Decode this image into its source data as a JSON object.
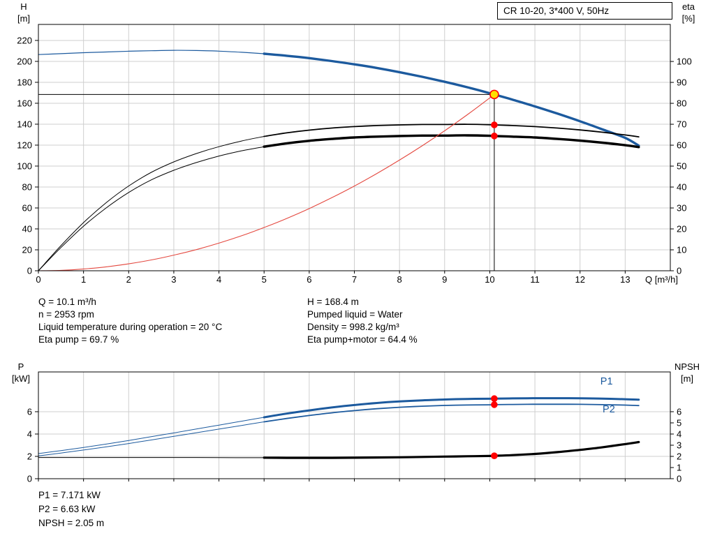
{
  "title_box": {
    "label": "CR 10-20, 3*400 V, 50Hz"
  },
  "operating_info": {
    "left": [
      "Q = 10.1 m³/h",
      "n = 2953 rpm",
      "Liquid temperature during operation = 20 °C",
      "Eta pump = 69.7 %"
    ],
    "right": [
      "H = 168.4 m",
      "Pumped liquid = Water",
      "Density = 998.2 kg/m³",
      "Eta pump+motor = 64.4 %"
    ]
  },
  "bottom_info": [
    "P1 = 7.171 kW",
    "P2 = 6.63 kW",
    "NPSH = 2.05 m"
  ],
  "colors": {
    "curve_blue": "#1c5a9e",
    "curve_black": "#000000",
    "curve_red": "#e4483f",
    "dot_red": "#ff0000",
    "op_yellow": "#ffdf00",
    "grid": "#cfcfcf",
    "axis": "#000000"
  },
  "chart_data": [
    {
      "type": "line",
      "title": "CR 10-20, 3*400 V, 50Hz",
      "x": {
        "label": "Q [m³/h]",
        "min": 0,
        "max": 14,
        "ticks": [
          0,
          1,
          2,
          3,
          4,
          5,
          6,
          7,
          8,
          9,
          10,
          11,
          12,
          13
        ],
        "show_labels": true
      },
      "y_left": {
        "label_lines": [
          "H",
          "[m]"
        ],
        "min": 0,
        "max": 235.3,
        "ticks": [
          0,
          20,
          40,
          60,
          80,
          100,
          120,
          140,
          160,
          180,
          200,
          220
        ]
      },
      "y_right": {
        "label_lines": [
          "eta",
          "[%]"
        ],
        "min": 0,
        "max": 117.7,
        "ticks": [
          0,
          10,
          20,
          30,
          40,
          50,
          60,
          70,
          80,
          90,
          100
        ]
      },
      "crosshair": {
        "q": 10.1,
        "axis": "left",
        "value": 168.4
      },
      "series": [
        {
          "sname": "h-curve",
          "label": "H",
          "axis": "left",
          "color": "#1c5a9e",
          "segments": [
            {
              "q0": 0,
              "q1": 5,
              "width": 1.2
            },
            {
              "q0": 5,
              "q1": 13.3,
              "width": 3.4
            }
          ],
          "points": [
            [
              0,
              206.5
            ],
            [
              0.5,
              207.4
            ],
            [
              1,
              208.3
            ],
            [
              1.5,
              209.0
            ],
            [
              2,
              209.7
            ],
            [
              2.5,
              210.2
            ],
            [
              3,
              210.6
            ],
            [
              3.5,
              210.4
            ],
            [
              4,
              209.8
            ],
            [
              4.5,
              208.7
            ],
            [
              5,
              207.3
            ],
            [
              5.5,
              205.4
            ],
            [
              6,
              203.1
            ],
            [
              6.5,
              200.3
            ],
            [
              7,
              197.2
            ],
            [
              7.5,
              193.7
            ],
            [
              8,
              189.7
            ],
            [
              8.5,
              185.3
            ],
            [
              9,
              180.5
            ],
            [
              9.5,
              175.3
            ],
            [
              10,
              169.6
            ],
            [
              10.1,
              168.4
            ],
            [
              10.5,
              163.5
            ],
            [
              11,
              157.0
            ],
            [
              11.5,
              150.1
            ],
            [
              12,
              142.8
            ],
            [
              12.5,
              135.0
            ],
            [
              13,
              126.9
            ],
            [
              13.3,
              119.5
            ]
          ]
        },
        {
          "sname": "eta-pump-curve",
          "label": "Eta pump",
          "axis": "right",
          "color": "#000000",
          "segments": [
            {
              "q0": 0,
              "q1": 5,
              "width": 1
            },
            {
              "q0": 5,
              "q1": 13.3,
              "width": 1.8
            }
          ],
          "points": [
            [
              0,
              0
            ],
            [
              0.5,
              12.0
            ],
            [
              1,
              23.0
            ],
            [
              1.5,
              32.5
            ],
            [
              2,
              40.5
            ],
            [
              2.5,
              47.0
            ],
            [
              3,
              52.0
            ],
            [
              3.5,
              56.0
            ],
            [
              4,
              59.3
            ],
            [
              4.5,
              62.0
            ],
            [
              5,
              64.2
            ],
            [
              5.5,
              65.9
            ],
            [
              6,
              67.2
            ],
            [
              6.5,
              68.2
            ],
            [
              7,
              68.9
            ],
            [
              7.5,
              69.4
            ],
            [
              8,
              69.7
            ],
            [
              8.5,
              69.9
            ],
            [
              9,
              69.9
            ],
            [
              9.5,
              70.0
            ],
            [
              10,
              69.8
            ],
            [
              10.1,
              69.7
            ],
            [
              10.5,
              69.4
            ],
            [
              11,
              68.9
            ],
            [
              11.5,
              68.2
            ],
            [
              12,
              67.3
            ],
            [
              12.5,
              66.2
            ],
            [
              13,
              64.9
            ],
            [
              13.3,
              64.0
            ]
          ]
        },
        {
          "sname": "eta-pump-motor-curve",
          "label": "Eta pump+motor",
          "axis": "right",
          "color": "#000000",
          "segments": [
            {
              "q0": 0,
              "q1": 5,
              "width": 1
            },
            {
              "q0": 5,
              "q1": 13.3,
              "width": 3.4
            }
          ],
          "points": [
            [
              0,
              0
            ],
            [
              0.5,
              11.1
            ],
            [
              1,
              21.3
            ],
            [
              1.5,
              30.0
            ],
            [
              2,
              37.4
            ],
            [
              2.5,
              43.4
            ],
            [
              3,
              48.0
            ],
            [
              3.5,
              51.7
            ],
            [
              4,
              54.8
            ],
            [
              4.5,
              57.3
            ],
            [
              5,
              59.3
            ],
            [
              5.5,
              60.9
            ],
            [
              6,
              62.1
            ],
            [
              6.5,
              63.0
            ],
            [
              7,
              63.7
            ],
            [
              7.5,
              64.1
            ],
            [
              8,
              64.4
            ],
            [
              8.5,
              64.6
            ],
            [
              9,
              64.6
            ],
            [
              9.5,
              64.7
            ],
            [
              10,
              64.5
            ],
            [
              10.1,
              64.4
            ],
            [
              10.5,
              64.1
            ],
            [
              11,
              63.7
            ],
            [
              11.5,
              63.0
            ],
            [
              12,
              62.2
            ],
            [
              12.5,
              61.2
            ],
            [
              13,
              60.0
            ],
            [
              13.3,
              59.1
            ]
          ]
        },
        {
          "sname": "system-curve",
          "label": "Duty curve",
          "axis": "left",
          "color": "#e4483f",
          "segments": [
            {
              "q0": 0,
              "q1": 10.1,
              "width": 1.1
            }
          ],
          "points": [
            [
              0,
              0
            ],
            [
              0.5,
              0.4
            ],
            [
              1,
              1.7
            ],
            [
              1.5,
              3.7
            ],
            [
              2,
              6.6
            ],
            [
              2.5,
              10.3
            ],
            [
              3,
              14.9
            ],
            [
              3.5,
              20.2
            ],
            [
              4,
              26.4
            ],
            [
              4.5,
              33.4
            ],
            [
              5,
              41.3
            ],
            [
              5.5,
              49.9
            ],
            [
              6,
              59.4
            ],
            [
              6.5,
              69.8
            ],
            [
              7,
              80.9
            ],
            [
              7.5,
              92.9
            ],
            [
              8,
              105.7
            ],
            [
              8.5,
              119.3
            ],
            [
              9,
              133.7
            ],
            [
              9.5,
              149.0
            ],
            [
              10,
              165.1
            ],
            [
              10.1,
              168.4
            ]
          ]
        }
      ],
      "markers": [
        {
          "name": "operating-point",
          "q": 10.1,
          "value": 168.4,
          "axis": "left",
          "style": "op"
        },
        {
          "name": "eta-pump-point",
          "q": 10.1,
          "value": 69.7,
          "axis": "right",
          "style": "dot"
        },
        {
          "name": "eta-pump-motor-point",
          "q": 10.1,
          "value": 64.4,
          "axis": "right",
          "style": "dot"
        }
      ],
      "annotations": []
    },
    {
      "type": "line",
      "title": "",
      "x": {
        "label": "",
        "min": 0,
        "max": 14,
        "ticks": [
          0,
          1,
          2,
          3,
          4,
          5,
          6,
          7,
          8,
          9,
          10,
          11,
          12,
          13
        ],
        "show_labels": false
      },
      "y_left": {
        "label_lines": [
          "P",
          "[kW]"
        ],
        "min": 0,
        "max": 9.56,
        "ticks": [
          0,
          2,
          4,
          6
        ]
      },
      "y_right": {
        "label_lines": [
          "NPSH",
          "[m]"
        ],
        "min": 0,
        "max": 9.56,
        "ticks": [
          0,
          1,
          2,
          3,
          4,
          5,
          6
        ]
      },
      "series": [
        {
          "sname": "p1-curve",
          "label": "P1",
          "axis": "left",
          "color": "#1c5a9e",
          "segments": [
            {
              "q0": 0,
              "q1": 5,
              "width": 1
            },
            {
              "q0": 5,
              "q1": 13.3,
              "width": 3
            }
          ],
          "points": [
            [
              0,
              2.25
            ],
            [
              0.5,
              2.52
            ],
            [
              1,
              2.8
            ],
            [
              1.5,
              3.1
            ],
            [
              2,
              3.42
            ],
            [
              2.5,
              3.76
            ],
            [
              3,
              4.1
            ],
            [
              3.5,
              4.45
            ],
            [
              4,
              4.8
            ],
            [
              4.5,
              5.15
            ],
            [
              5,
              5.5
            ],
            [
              5.5,
              5.83
            ],
            [
              6,
              6.12
            ],
            [
              6.5,
              6.38
            ],
            [
              7,
              6.6
            ],
            [
              7.5,
              6.78
            ],
            [
              8,
              6.92
            ],
            [
              8.5,
              7.02
            ],
            [
              9,
              7.09
            ],
            [
              9.5,
              7.14
            ],
            [
              10,
              7.16
            ],
            [
              10.1,
              7.171
            ],
            [
              10.5,
              7.19
            ],
            [
              11,
              7.21
            ],
            [
              11.5,
              7.21
            ],
            [
              12,
              7.2
            ],
            [
              12.5,
              7.17
            ],
            [
              13,
              7.12
            ],
            [
              13.3,
              7.08
            ]
          ]
        },
        {
          "sname": "p2-curve",
          "label": "P2",
          "axis": "left",
          "color": "#1c5a9e",
          "segments": [
            {
              "q0": 0,
              "q1": 5,
              "width": 1
            },
            {
              "q0": 5,
              "q1": 13.3,
              "width": 1.8
            }
          ],
          "points": [
            [
              0,
              2.05
            ],
            [
              0.5,
              2.3
            ],
            [
              1,
              2.57
            ],
            [
              1.5,
              2.85
            ],
            [
              2,
              3.15
            ],
            [
              2.5,
              3.47
            ],
            [
              3,
              3.79
            ],
            [
              3.5,
              4.12
            ],
            [
              4,
              4.44
            ],
            [
              4.5,
              4.77
            ],
            [
              5,
              5.09
            ],
            [
              5.5,
              5.39
            ],
            [
              6,
              5.66
            ],
            [
              6.5,
              5.9
            ],
            [
              7,
              6.1
            ],
            [
              7.5,
              6.27
            ],
            [
              8,
              6.4
            ],
            [
              8.5,
              6.49
            ],
            [
              9,
              6.56
            ],
            [
              9.5,
              6.6
            ],
            [
              10,
              6.62
            ],
            [
              10.1,
              6.63
            ],
            [
              10.5,
              6.65
            ],
            [
              11,
              6.67
            ],
            [
              11.5,
              6.67
            ],
            [
              12,
              6.66
            ],
            [
              12.5,
              6.63
            ],
            [
              13,
              6.59
            ],
            [
              13.3,
              6.55
            ]
          ]
        },
        {
          "sname": "npsh-curve",
          "label": "NPSH",
          "axis": "right",
          "color": "#000000",
          "segments": [
            {
              "q0": 0,
              "q1": 5,
              "width": 1
            },
            {
              "q0": 5,
              "q1": 13.3,
              "width": 3.2
            }
          ],
          "points": [
            [
              0,
              1.9
            ],
            [
              1,
              1.9
            ],
            [
              2,
              1.9
            ],
            [
              3,
              1.9
            ],
            [
              4,
              1.89
            ],
            [
              5,
              1.88
            ],
            [
              5.5,
              1.87
            ],
            [
              6,
              1.87
            ],
            [
              6.5,
              1.87
            ],
            [
              7,
              1.88
            ],
            [
              7.5,
              1.9
            ],
            [
              8,
              1.92
            ],
            [
              8.5,
              1.95
            ],
            [
              9,
              1.98
            ],
            [
              9.5,
              2.01
            ],
            [
              10,
              2.04
            ],
            [
              10.1,
              2.05
            ],
            [
              10.5,
              2.11
            ],
            [
              11,
              2.22
            ],
            [
              11.5,
              2.38
            ],
            [
              12,
              2.58
            ],
            [
              12.5,
              2.82
            ],
            [
              13,
              3.1
            ],
            [
              13.3,
              3.28
            ]
          ]
        }
      ],
      "markers": [
        {
          "name": "p1-point",
          "q": 10.1,
          "value": 7.171,
          "axis": "left",
          "style": "dot"
        },
        {
          "name": "p2-point",
          "q": 10.1,
          "value": 6.63,
          "axis": "left",
          "style": "dot"
        },
        {
          "name": "npsh-point",
          "q": 10.1,
          "value": 2.05,
          "axis": "right",
          "style": "dot"
        }
      ],
      "annotations": [
        {
          "text": "P1",
          "q": 12.45,
          "value": 8.45,
          "axis": "left",
          "color": "#1c5a9e"
        },
        {
          "text": "P2",
          "q": 12.5,
          "value": 5.95,
          "axis": "left",
          "color": "#1c5a9e"
        }
      ]
    }
  ]
}
